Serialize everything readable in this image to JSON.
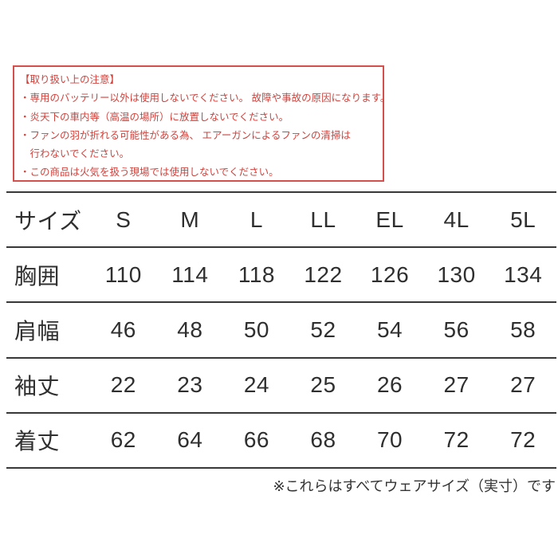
{
  "colors": {
    "warning_border": "#d5504d",
    "warning_text": "#d0423c",
    "table_text": "#2f2f2f",
    "table_line": "#383838",
    "background": "#ffffff"
  },
  "warning_box": {
    "title": "【取り扱い上の注意】",
    "lines": [
      "・専用のバッテリー以外は使用しないでください。 故障や事故の原因になります。",
      "・炎天下の車内等（高温の場所）に放置しないでください。",
      "・ファンの羽が折れる可能性がある為、 エアーガンによるファンの清掃は",
      "　行わないでください。",
      "・この商品は火気を扱う現場では使用しないでください。"
    ]
  },
  "size_table": {
    "header": [
      "サイズ",
      "S",
      "M",
      "L",
      "LL",
      "EL",
      "4L",
      "5L"
    ],
    "rows": [
      {
        "label": "胸囲",
        "values": [
          "110",
          "114",
          "118",
          "122",
          "126",
          "130",
          "134"
        ]
      },
      {
        "label": "肩幅",
        "values": [
          "46",
          "48",
          "50",
          "52",
          "54",
          "56",
          "58"
        ]
      },
      {
        "label": "袖丈",
        "values": [
          "22",
          "23",
          "24",
          "25",
          "26",
          "27",
          "27"
        ]
      },
      {
        "label": "着丈",
        "values": [
          "62",
          "64",
          "66",
          "68",
          "70",
          "72",
          "72"
        ]
      }
    ]
  },
  "footnote": "※これらはすべてウェアサイズ（実寸）です"
}
